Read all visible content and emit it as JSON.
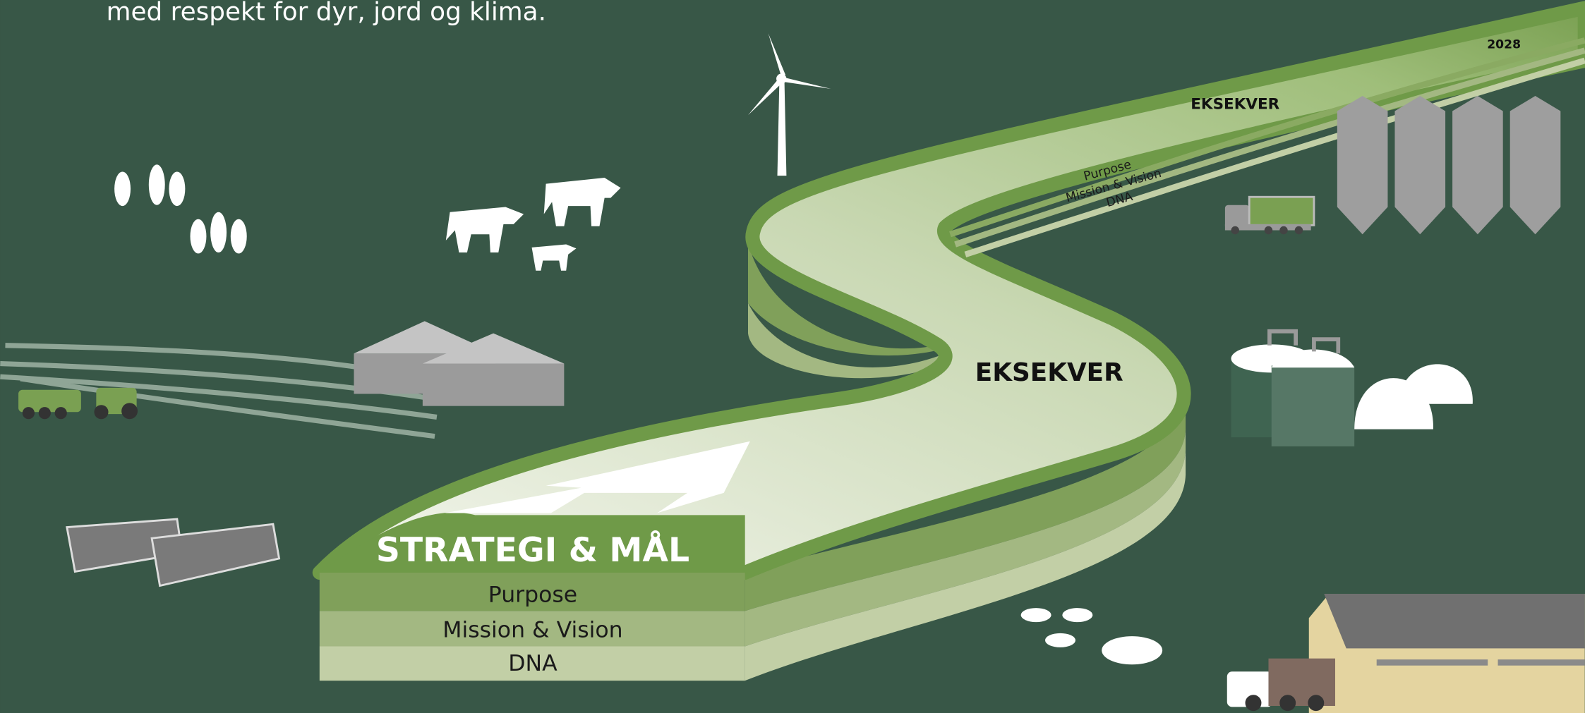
{
  "header": {
    "subtitle": "med respekt for dyr, jord og klima."
  },
  "road": {
    "end_year": "2028",
    "top_label": "EKSEKVER",
    "top_layers": [
      "Purpose",
      "Mission & Vision",
      "DNA"
    ],
    "middle_label": "EKSEKVER",
    "start_title": "STRATEGI & MÅL",
    "start_layers": [
      "Purpose",
      "Mission & Vision",
      "DNA"
    ]
  }
}
